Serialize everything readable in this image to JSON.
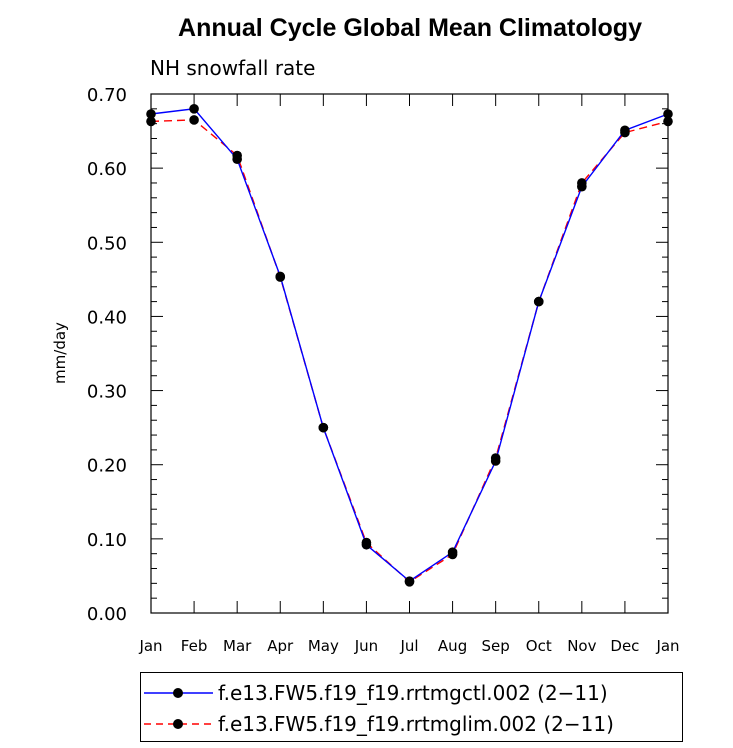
{
  "chart_data": {
    "type": "line",
    "title": "Annual Cycle Global Mean Climatology",
    "subtitle": "NH snowfall rate",
    "xlabel": "",
    "ylabel": "mm/day",
    "categories": [
      "Jan",
      "Feb",
      "Mar",
      "Apr",
      "May",
      "Jun",
      "Jul",
      "Aug",
      "Sep",
      "Oct",
      "Nov",
      "Dec",
      "Jan"
    ],
    "ylim": [
      0.0,
      0.7
    ],
    "yticks": [
      "0.00",
      "0.10",
      "0.20",
      "0.30",
      "0.40",
      "0.50",
      "0.60",
      "0.70"
    ],
    "series": [
      {
        "name": "f.e13.FW5.f19_f19.rrtmgctl.002 (2−11)",
        "color": "#0000ff",
        "dash": "solid",
        "values": [
          0.673,
          0.68,
          0.612,
          0.454,
          0.25,
          0.092,
          0.043,
          0.082,
          0.205,
          0.42,
          0.575,
          0.651,
          0.673
        ]
      },
      {
        "name": "f.e13.FW5.f19_f19.rrtmglim.002 (2−11)",
        "color": "#ff0000",
        "dash": "dashed",
        "values": [
          0.663,
          0.665,
          0.617,
          0.453,
          0.25,
          0.095,
          0.042,
          0.079,
          0.209,
          0.42,
          0.58,
          0.648,
          0.663
        ]
      }
    ],
    "legend_position": "bottom"
  }
}
